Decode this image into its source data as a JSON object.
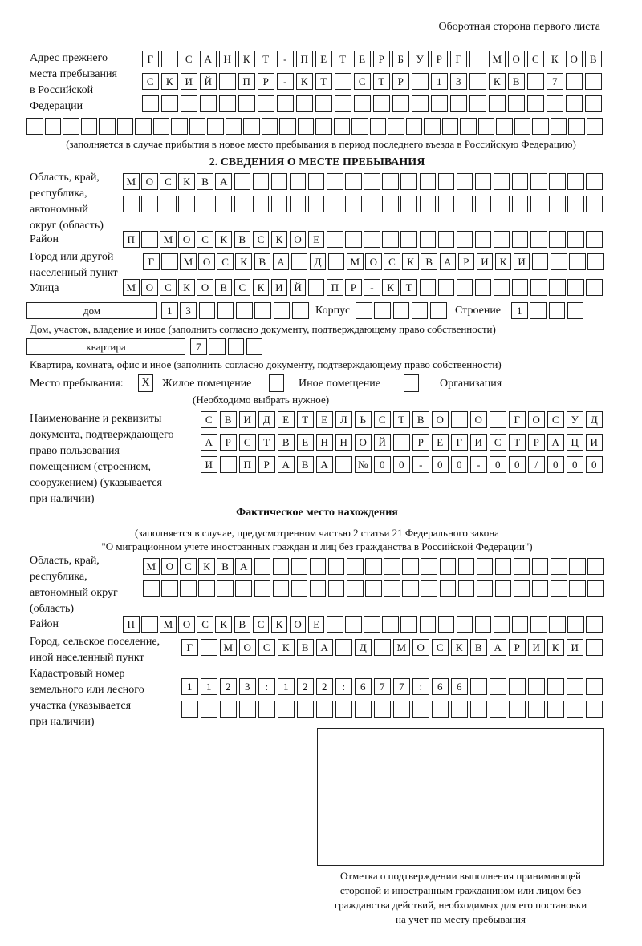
{
  "header": "Оборотная сторона первого листа",
  "prev_address": {
    "label_lines": [
      "Адрес прежнего",
      "места пребывания",
      "в Российской",
      "Федерации"
    ],
    "rows": [
      [
        "Г",
        "",
        "С",
        "А",
        "Н",
        "К",
        "Т",
        "-",
        "П",
        "Е",
        "Т",
        "Е",
        "Р",
        "Б",
        "У",
        "Р",
        "Г",
        "",
        "М",
        "О",
        "С",
        "К",
        "О",
        "В"
      ],
      [
        "С",
        "К",
        "И",
        "Й",
        "",
        "П",
        "Р",
        "-",
        "К",
        "Т",
        "",
        "С",
        "Т",
        "Р",
        "",
        "1",
        "3",
        "",
        "К",
        "В",
        "",
        "7",
        "",
        ""
      ],
      [],
      []
    ],
    "note": "(заполняется в случае прибытия в новое место пребывания в период последнего въезда в Российскую Федерацию)"
  },
  "section2": {
    "title": "2. СВЕДЕНИЯ О МЕСТЕ ПРЕБЫВАНИЯ",
    "region_label_lines": [
      "Область, край,",
      "республика,",
      "автономный",
      "округ (область)"
    ],
    "region_rows": [
      [
        "М",
        "О",
        "С",
        "К",
        "В",
        "А"
      ],
      []
    ],
    "district_label": "Район",
    "district": [
      "П",
      "",
      "М",
      "О",
      "С",
      "К",
      "В",
      "С",
      "К",
      "О",
      "Е"
    ],
    "city_label_lines": [
      "Город или другой",
      "населенный пункт"
    ],
    "city": [
      "Г",
      "",
      "М",
      "О",
      "С",
      "К",
      "В",
      "А",
      "",
      "Д",
      "",
      "М",
      "О",
      "С",
      "К",
      "В",
      "А",
      "Р",
      "И",
      "К",
      "И"
    ],
    "street_label": "Улица",
    "street": [
      "М",
      "О",
      "С",
      "К",
      "О",
      "В",
      "С",
      "К",
      "И",
      "Й",
      "",
      "П",
      "Р",
      "-",
      "К",
      "Т"
    ],
    "house_type": "дом",
    "house": [
      "1",
      "3"
    ],
    "korpus_label": "Корпус",
    "korpus": [],
    "stroenie_label": "Строение",
    "stroenie": [
      "1"
    ],
    "house_caption": "Дом, участок, владение и иное (заполнить согласно документу, подтверждающему право собственности)",
    "flat_type": "квартира",
    "flat": [
      "7"
    ],
    "flat_caption": "Квартира, комната, офис и иное (заполнить согласно документу, подтверждающему право собственности)",
    "stay_place_label": "Место пребывания:",
    "options": [
      {
        "label": "Жилое помещение",
        "mark": "X"
      },
      {
        "label": "Иное помещение",
        "mark": ""
      },
      {
        "label": "Организация",
        "mark": ""
      }
    ],
    "options_note": "(Необходимо выбрать нужное)",
    "doc_label_lines": [
      "Наименование и реквизиты",
      "документа, подтверждающего",
      "право пользования",
      "помещением (строением,",
      "сооружением) (указывается",
      "при наличии)"
    ],
    "doc_rows": [
      [
        "С",
        "В",
        "И",
        "Д",
        "Е",
        "Т",
        "Е",
        "Л",
        "Ь",
        "С",
        "Т",
        "В",
        "О",
        "",
        "О",
        "",
        "Г",
        "О",
        "С",
        "У",
        "Д"
      ],
      [
        "А",
        "Р",
        "С",
        "Т",
        "В",
        "Е",
        "Н",
        "Н",
        "О",
        "Й",
        "",
        "Р",
        "Е",
        "Г",
        "И",
        "С",
        "Т",
        "Р",
        "А",
        "Ц",
        "И"
      ],
      [
        "И",
        "",
        "П",
        "Р",
        "А",
        "В",
        "А",
        "",
        "№",
        "0",
        "0",
        "-",
        "0",
        "0",
        "-",
        "0",
        "0",
        "/",
        "0",
        "0",
        "0"
      ]
    ]
  },
  "actual": {
    "title": "Фактическое место нахождения",
    "note_lines": [
      "(заполняется в случае, предусмотренном частью 2 статьи 21 Федерального закона",
      "\"О миграционном учете иностранных граждан и лиц без гражданства в Российской Федерации\")"
    ],
    "region_label_lines": [
      "Область, край,",
      "республика,",
      "автономный округ",
      "(область)"
    ],
    "region_rows": [
      [
        "М",
        "О",
        "С",
        "К",
        "В",
        "А"
      ],
      []
    ],
    "district_label": "Район",
    "district": [
      "П",
      "",
      "М",
      "О",
      "С",
      "К",
      "В",
      "С",
      "К",
      "О",
      "Е"
    ],
    "city_label_lines": [
      "Город, сельское поселение,",
      "иной населенный пункт"
    ],
    "city": [
      "Г",
      "",
      "М",
      "О",
      "С",
      "К",
      "В",
      "А",
      "",
      "Д",
      "",
      "М",
      "О",
      "С",
      "К",
      "В",
      "А",
      "Р",
      "И",
      "К",
      "И"
    ],
    "cadastral_label_lines": [
      "Кадастровый номер",
      "земельного или лесного",
      "участка (указывается",
      "при наличии)"
    ],
    "cadastral_rows": [
      [
        "1",
        "1",
        "2",
        "3",
        ":",
        "1",
        "2",
        "2",
        ":",
        "6",
        "7",
        "7",
        ":",
        "6",
        "6"
      ],
      []
    ]
  },
  "stamp_caption_lines": [
    "Отметка о подтверждении выполнения принимающей",
    "стороной и иностранным гражданином или лицом без",
    "гражданства действий, необходимых для его постановки",
    "на учет по месту пребывания"
  ]
}
